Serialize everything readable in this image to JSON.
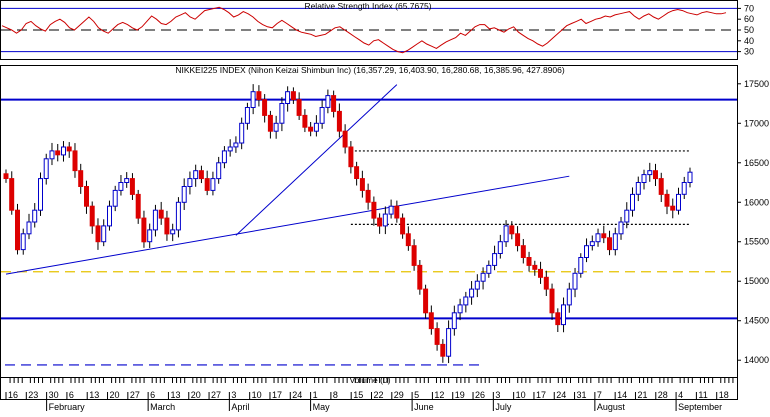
{
  "chart_data": [
    {
      "type": "line",
      "panel": "indicator",
      "title": "Relative Strength Index (65.7675)",
      "yticks": [
        30,
        40,
        50,
        60,
        70
      ],
      "ylim": [
        25,
        75
      ],
      "reference_lines": [
        {
          "value": 70,
          "style": "solid",
          "color": "#0000cc"
        },
        {
          "value": 50,
          "style": "dashed",
          "color": "#000000"
        },
        {
          "value": 30,
          "style": "solid",
          "color": "#0000cc"
        }
      ],
      "series": [
        {
          "color": "#cc0000",
          "values": [
            54,
            52,
            50,
            47,
            50,
            56,
            58,
            54,
            51,
            49,
            55,
            58,
            60,
            57,
            52,
            50,
            54,
            58,
            62,
            58,
            52,
            49,
            47,
            51,
            55,
            57,
            55,
            52,
            50,
            53,
            58,
            63,
            60,
            56,
            55,
            58,
            62,
            64,
            66,
            62,
            60,
            64,
            68,
            69,
            70,
            71,
            69,
            66,
            62,
            64,
            67,
            65,
            62,
            58,
            55,
            53,
            52,
            56,
            59,
            56,
            53,
            50,
            48,
            47,
            46,
            44,
            45,
            46,
            49,
            52,
            53,
            50,
            47,
            44,
            41,
            38,
            36,
            40,
            41,
            38,
            35,
            32,
            30,
            29,
            31,
            34,
            37,
            40,
            37,
            35,
            33,
            36,
            39,
            41,
            43,
            47,
            45,
            49,
            53,
            55,
            55,
            51,
            52,
            50,
            48,
            51,
            53,
            48,
            45,
            42,
            40,
            37,
            35,
            38,
            42,
            46,
            50,
            54,
            56,
            58,
            60,
            56,
            58,
            60,
            61,
            63,
            62,
            64,
            65,
            66,
            67,
            63,
            60,
            63,
            65,
            62,
            60,
            63,
            66,
            68,
            69,
            68,
            66,
            65,
            64,
            66,
            67,
            66,
            65,
            65,
            66
          ]
        }
      ]
    },
    {
      "type": "candlestick",
      "panel": "price",
      "title": "NIKKEI225 INDEX (Nihon Keizai Shimbun Inc) (16,357.29, 16,403.90, 16,280.68, 16,385.96, 427.8906)",
      "yticks": [
        14000,
        14500,
        15000,
        15500,
        16000,
        16500,
        17000,
        17500
      ],
      "ylim": [
        13800,
        17700
      ],
      "month_labels": [
        "February",
        "March",
        "April",
        "May",
        "June",
        "July",
        "August",
        "September"
      ],
      "volume_label": "Volume (0)",
      "day_ticks": [
        "16",
        "23",
        "30",
        "6",
        "13",
        "20",
        "27",
        "6",
        "13",
        "20",
        "27",
        "3",
        "10",
        "17",
        "24",
        "1",
        "8",
        "15",
        "22",
        "29",
        "5",
        "12",
        "19",
        "26",
        "3",
        "10",
        "17",
        "24",
        "31",
        "7",
        "14",
        "21",
        "28",
        "4",
        "11",
        "18"
      ],
      "horizontal_lines": [
        {
          "value": 17300,
          "style": "solid",
          "color": "#0000cc"
        },
        {
          "value": 14530,
          "style": "solid",
          "color": "#0000cc"
        },
        {
          "value": 16650,
          "style": "dotted",
          "color": "#000000"
        },
        {
          "value": 15720,
          "style": "dotted",
          "color": "#000000"
        },
        {
          "value": 15120,
          "style": "dashed",
          "color": "#e6c200"
        },
        {
          "value": 13940,
          "style": "dashed",
          "color": "#0000cc"
        }
      ],
      "trendlines": [
        {
          "from": {
            "index": 0,
            "value": 15090
          },
          "to": {
            "index": 98,
            "value": 16330
          }
        },
        {
          "from": {
            "index": 40,
            "value": 15580
          },
          "to": {
            "index": 68,
            "value": 17490
          }
        }
      ],
      "close": [
        16300,
        15900,
        15400,
        15600,
        15750,
        15900,
        16300,
        16550,
        16650,
        16600,
        16700,
        16650,
        16400,
        16200,
        15950,
        15700,
        15500,
        15700,
        15950,
        16150,
        16250,
        16300,
        16100,
        15800,
        15500,
        15650,
        15900,
        15800,
        15600,
        15650,
        16000,
        16200,
        16300,
        16400,
        16300,
        16150,
        16300,
        16500,
        16650,
        16700,
        16750,
        17000,
        17200,
        17400,
        17300,
        17100,
        16900,
        17000,
        17250,
        17400,
        17300,
        17100,
        16950,
        16900,
        17000,
        17200,
        17350,
        17150,
        16900,
        16700,
        16450,
        16300,
        16150,
        16000,
        15800,
        15700,
        15850,
        15950,
        15800,
        15600,
        15450,
        15200,
        14900,
        14600,
        14400,
        14200,
        14050,
        14400,
        14600,
        14700,
        14800,
        14900,
        15000,
        15100,
        15200,
        15350,
        15500,
        15700,
        15600,
        15450,
        15300,
        15200,
        15150,
        15050,
        14900,
        14600,
        14450,
        14700,
        14900,
        15100,
        15300,
        15450,
        15500,
        15600,
        15550,
        15400,
        15600,
        15750,
        15900,
        16100,
        16250,
        16350,
        16400,
        16300,
        16100,
        15950,
        15900,
        16100,
        16250,
        16380
      ]
    }
  ]
}
